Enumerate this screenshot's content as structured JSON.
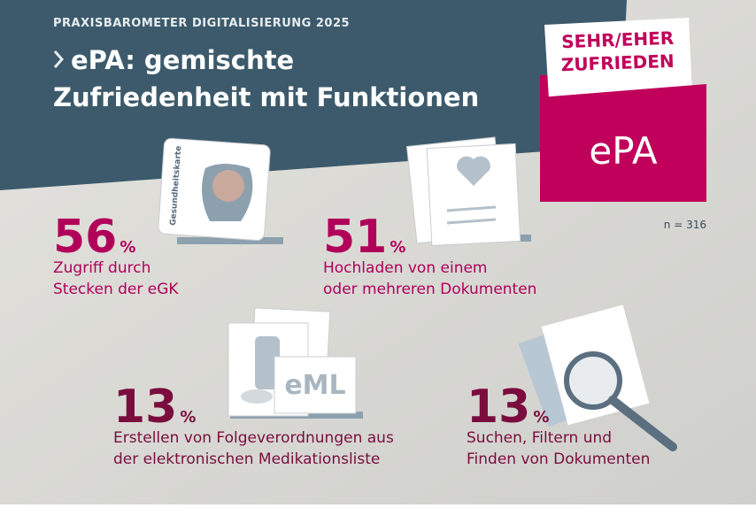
{
  "header": {
    "kicker": "PRAXISBAROMETER DIGITALISIERUNG 2025",
    "title_line1": "ePA: gemischte",
    "title_line2": "Zufriedenheit mit Funktionen"
  },
  "badge": {
    "label_line1": "SEHR/EHER",
    "label_line2": "ZUFRIEDEN",
    "name": "ePA"
  },
  "sample": "n = 316",
  "card_text": "Gesundheitskarte",
  "eml_text": "eML",
  "items": [
    {
      "value": 56,
      "unit": "%",
      "line1": "Zugriff durch",
      "line2": "Stecken der eGK"
    },
    {
      "value": 51,
      "unit": "%",
      "line1": "Hochladen von einem",
      "line2": "oder mehreren Dokumenten"
    },
    {
      "value": 13,
      "unit": "%",
      "line1": "Erstellen von Folgeverordnungen aus",
      "line2": "der elektronischen Medikationsliste"
    },
    {
      "value": 13,
      "unit": "%",
      "line1": "Suchen, Filtern und",
      "line2": "Finden von Dokumenten"
    }
  ]
}
